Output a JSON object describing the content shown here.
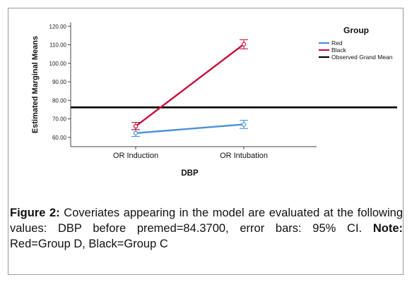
{
  "chart_data": {
    "type": "line",
    "xlabel": "DBP",
    "ylabel": "Estimated Marginal Means",
    "categories": [
      "OR Induction",
      "OR Intubation"
    ],
    "ylim": [
      55,
      122
    ],
    "yticks": [
      "60.00",
      "70.00",
      "80.00",
      "90.00",
      "100.00",
      "110.00",
      "120.00"
    ],
    "series": [
      {
        "name": "Red",
        "color": "#4a90d9",
        "values": [
          62.3,
          67.0
        ],
        "ci_low": [
          60.5,
          64.8
        ],
        "ci_high": [
          64.2,
          69.2
        ]
      },
      {
        "name": "Black",
        "color": "#c8103c",
        "values": [
          66.0,
          110.3
        ],
        "ci_low": [
          64.2,
          107.8
        ],
        "ci_high": [
          68.1,
          112.8
        ]
      }
    ],
    "reference_line": {
      "name": "Observed Grand Mean",
      "value": 76.2,
      "color": "#000000"
    },
    "legend": {
      "title": "Group",
      "placement": "top-right"
    },
    "grid": false
  },
  "caption": {
    "figure_label": "Figure 2:",
    "text": " Coveriates appearing in the model are evaluated at the following values: DBP before premed=84.3700, error bars: 95% CI. ",
    "note_label": "Note:",
    "note_text": " Red=Group D, Black=Group C"
  }
}
